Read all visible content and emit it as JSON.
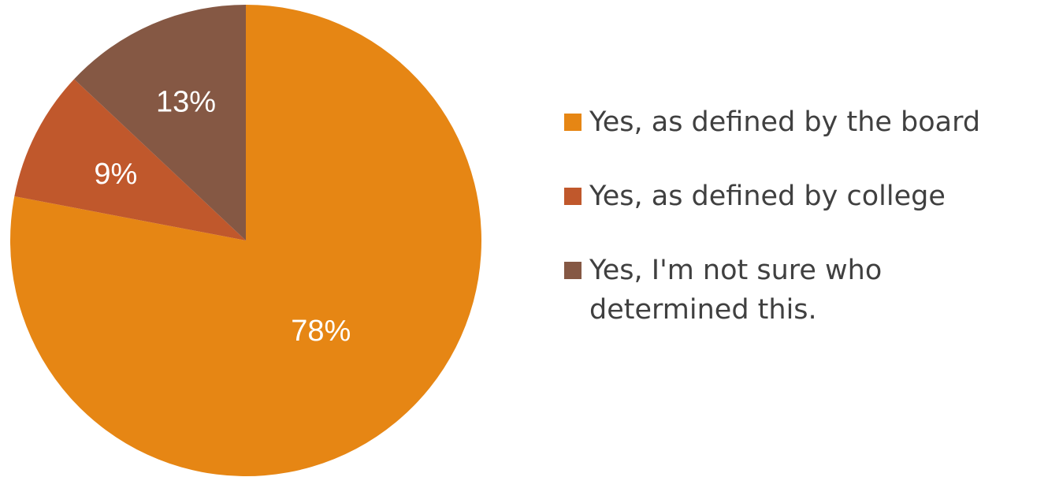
{
  "chart_data": {
    "type": "pie",
    "title": "",
    "start_angle_deg": 0,
    "direction": "clockwise",
    "legend_position": "right",
    "slices": [
      {
        "label": "Yes, as defined by the board",
        "value": 78,
        "display": "78%",
        "color": "#E68614"
      },
      {
        "label": "Yes, as defined by college",
        "value": 9,
        "display": "9%",
        "color": "#C0582C"
      },
      {
        "label": "Yes, I'm not sure who determined this.",
        "value": 13,
        "display": "13%",
        "color": "#855844"
      }
    ]
  }
}
